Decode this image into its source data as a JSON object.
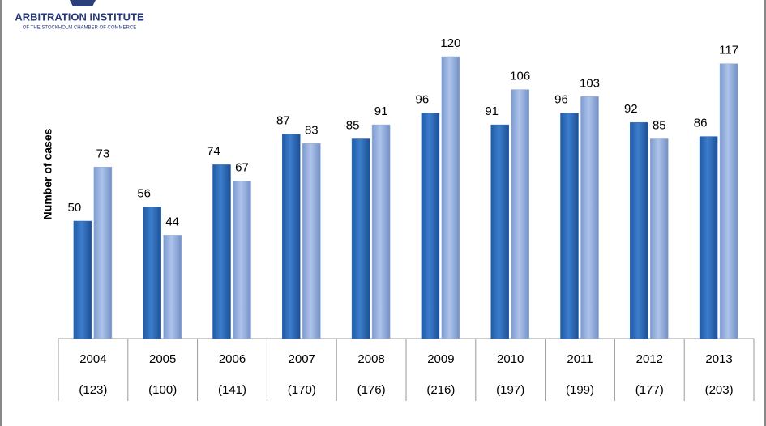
{
  "logo": {
    "title": "ARBITRATION INSTITUTE",
    "subtitle": "OF THE STOCKHOLM CHAMBER OF COMMERCE"
  },
  "chart_data": {
    "type": "bar",
    "y_label": "Number of cases",
    "categories": [
      "2004",
      "2005",
      "2006",
      "2007",
      "2008",
      "2009",
      "2010",
      "2011",
      "2012",
      "2013"
    ],
    "category_totals": [
      "(123)",
      "(100)",
      "(141)",
      "(170)",
      "(176)",
      "(216)",
      "(197)",
      "(199)",
      "(177)",
      "(203)"
    ],
    "series": [
      {
        "color": "#2f6cb7",
        "values": [
          50,
          56,
          74,
          87,
          85,
          96,
          91,
          96,
          92,
          86
        ]
      },
      {
        "color": "#93acd9",
        "values": [
          73,
          44,
          67,
          83,
          91,
          120,
          106,
          103,
          85,
          117
        ]
      }
    ],
    "ylim": [
      0,
      120
    ]
  }
}
